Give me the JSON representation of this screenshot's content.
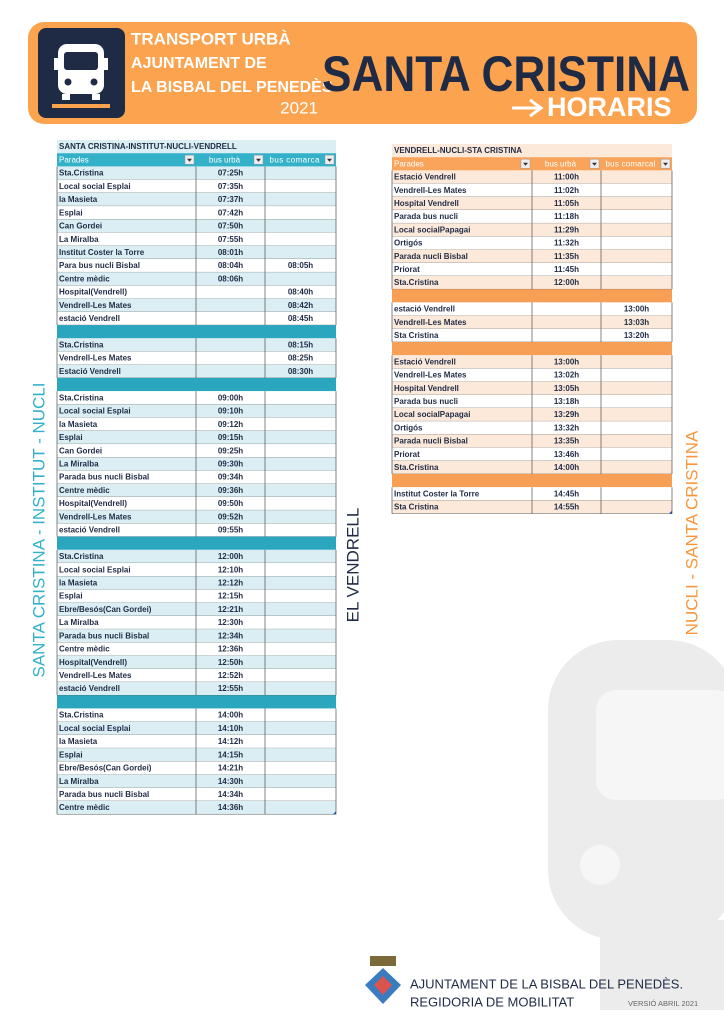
{
  "header": {
    "line1": "TRANSPORT URBÀ",
    "line2": "AJUNTAMENT DE",
    "line3": "LA BISBAL DEL PENEDÈS",
    "year": "2021",
    "place": "SANTA CRISTINA",
    "subtitle": "HORARIS"
  },
  "side_labels": {
    "left": "SANTA CRISTINA - INSTITUT - NUCLI",
    "middle": "EL VENDRELL",
    "right": "NUCLI - SANTA CRISTINA"
  },
  "tables": [
    {
      "title": "SANTA CRISTINA-INSTITUT-NUCLI-VENDRELL",
      "columns": [
        "Parades",
        "bus urbà",
        "bus comarca"
      ],
      "groups": [
        [
          [
            "Sta.Cristina",
            "07:25h",
            null
          ],
          [
            "Local social Esplai",
            "07:35h",
            null
          ],
          [
            "la Masieta",
            "07:37h",
            null
          ],
          [
            "Esplai",
            "07:42h",
            null
          ],
          [
            "Can Gordei",
            "07:50h",
            null
          ],
          [
            "La Miralba",
            "07:55h",
            null
          ],
          [
            "Institut Coster la Torre",
            "08:01h",
            null
          ],
          [
            "Para bus nucli Bisbal",
            "08:04h",
            "08:05h"
          ],
          [
            "Centre mèdic",
            "08:06h",
            null
          ],
          [
            "Hospital(Vendrell)",
            null,
            "08:40h"
          ],
          [
            "Vendrell-Les Mates",
            null,
            "08:42h"
          ],
          [
            "estació Vendrell",
            null,
            "08:45h"
          ]
        ],
        [
          [
            "Sta.Cristina",
            null,
            "08:15h"
          ],
          [
            "Vendrell-Les Mates",
            null,
            "08:25h"
          ],
          [
            "Estació Vendrell",
            null,
            "08:30h"
          ]
        ],
        [
          [
            "Sta.Cristina",
            "09:00h",
            null
          ],
          [
            "Local social Esplai",
            "09:10h",
            null
          ],
          [
            "la Masieta",
            "09:12h",
            null
          ],
          [
            "Esplai",
            "09:15h",
            null
          ],
          [
            "Can Gordei",
            "09:25h",
            null
          ],
          [
            "La Miralba",
            "09:30h",
            null
          ],
          [
            "Parada bus nucli Bisbal",
            "09:34h",
            null
          ],
          [
            "Centre mèdic",
            "09:36h",
            null
          ],
          [
            "Hospital(Vendrell)",
            "09:50h",
            null
          ],
          [
            "Vendrell-Les Mates",
            "09:52h",
            null
          ],
          [
            "estació Vendrell",
            "09:55h",
            null
          ]
        ],
        [
          [
            "Sta.Cristina",
            "12:00h",
            null
          ],
          [
            "Local social Esplai",
            "12:10h",
            null
          ],
          [
            "la Masieta",
            "12:12h",
            null
          ],
          [
            "Esplai",
            "12:15h",
            null
          ],
          [
            "Ebre/Besós(Can Gordei)",
            "12:21h",
            null
          ],
          [
            "La Miralba",
            "12:30h",
            null
          ],
          [
            "Parada bus nucli Bisbal",
            "12:34h",
            null
          ],
          [
            "Centre mèdic",
            "12:36h",
            null
          ],
          [
            "Hospital(Vendrell)",
            "12:50h",
            null
          ],
          [
            "Vendrell-Les Mates",
            "12:52h",
            null
          ],
          [
            "estació Vendrell",
            "12:55h",
            null
          ]
        ],
        [
          [
            "Sta.Cristina",
            "14:00h",
            null
          ],
          [
            "Local social Esplai",
            "14:10h",
            null
          ],
          [
            "la Masieta",
            "14:12h",
            null
          ],
          [
            "Esplai",
            "14:15h",
            null
          ],
          [
            "Ebre/Besós(Can Gordei)",
            "14:21h",
            null
          ],
          [
            "La Miralba",
            "14:30h",
            null
          ],
          [
            "Parada bus nucli Bisbal",
            "14:34h",
            null
          ],
          [
            "Centre mèdic",
            "14:36h",
            null
          ]
        ]
      ]
    },
    {
      "title": "VENDRELL-NUCLI-STA CRISTINA",
      "columns": [
        "Parades",
        "bus urbà",
        "bus comarcal"
      ],
      "groups": [
        [
          [
            "Estació Vendrell",
            "11:00h",
            null
          ],
          [
            "Vendrell-Les Mates",
            "11:02h",
            null
          ],
          [
            "Hospital Vendrell",
            "11:05h",
            null
          ],
          [
            "Parada bus nucli",
            "11:18h",
            null
          ],
          [
            "Local socialPapagai",
            "11:29h",
            null
          ],
          [
            "Ortigós",
            "11:32h",
            null
          ],
          [
            "Parada nucli Bisbal",
            "11:35h",
            null
          ],
          [
            "Priorat",
            "11:45h",
            null
          ],
          [
            "Sta.Cristina",
            "12:00h",
            null
          ]
        ],
        [
          [
            "estació Vendrell",
            null,
            "13:00h"
          ],
          [
            "Vendrell-Les Mates",
            null,
            "13:03h"
          ],
          [
            "Sta Cristina",
            null,
            "13:20h"
          ]
        ],
        [
          [
            "Estació Vendrell",
            "13:00h",
            null
          ],
          [
            "Vendrell-Les Mates",
            "13:02h",
            null
          ],
          [
            "Hospital Vendrell",
            "13:05h",
            null
          ],
          [
            "Parada bus nucli",
            "13:18h",
            null
          ],
          [
            "Local socialPapagai",
            "13:29h",
            null
          ],
          [
            "Ortigós",
            "13:32h",
            null
          ],
          [
            "Parada nucli Bisbal",
            "13:35h",
            null
          ],
          [
            "Priorat",
            "13:46h",
            null
          ],
          [
            "Sta.Cristina",
            "14:00h",
            null
          ]
        ],
        [
          [
            "Institut Coster la Torre",
            "14:45h",
            null
          ],
          [
            "Sta Cristina",
            "14:55h",
            null
          ]
        ]
      ]
    }
  ],
  "footer": {
    "line1": "AJUNTAMENT DE LA BISBAL DEL PENEDÈS.",
    "line2": "REGIDORIA DE MOBILITAT",
    "version": "VERSIÓ ABRIL 2021"
  }
}
